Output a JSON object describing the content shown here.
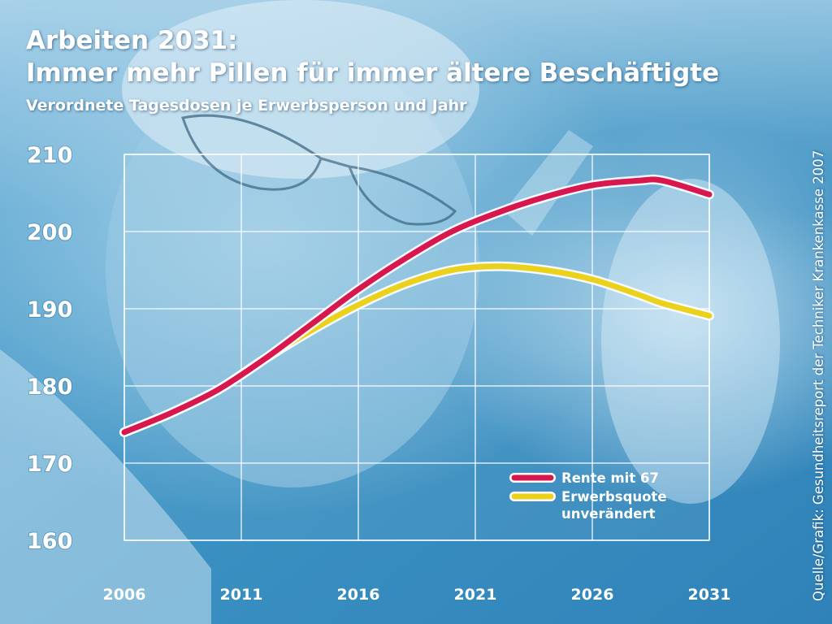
{
  "header": {
    "title_line1": "Arbeiten 2031:",
    "title_line2": "Immer mehr Pillen für immer ältere Beschäftigte",
    "subtitle": "Verordnete Tagesdosen je Erwerbsperson und Jahr"
  },
  "source": "Quelle/Grafik: Gesundheitsreport der Techniker Krankenkasse 2007",
  "chart_data": {
    "type": "line",
    "x": [
      2006,
      2008,
      2010,
      2012,
      2014,
      2016,
      2018,
      2020,
      2022,
      2024,
      2026,
      2028,
      2029,
      2031
    ],
    "xticks": [
      2006,
      2011,
      2016,
      2021,
      2026,
      2031
    ],
    "xtick_labels": [
      "2006",
      "2011",
      "2016",
      "2021",
      "2026",
      "2031"
    ],
    "ylim": [
      160,
      210
    ],
    "yticks": [
      160,
      170,
      180,
      190,
      200,
      210
    ],
    "ytick_labels": [
      "160",
      "170",
      "180",
      "190",
      "200",
      "210"
    ],
    "grid": true,
    "legend_position": "lower-right",
    "series": [
      {
        "name": "Rente mit 67",
        "color": "#d8174f",
        "values": [
          174,
          176.5,
          179.5,
          183.5,
          188,
          192.5,
          196.5,
          200,
          202.5,
          204.5,
          206,
          206.6,
          206.6,
          204.8
        ]
      },
      {
        "name": "Erwerbsquote unverändert",
        "name_lines": [
          "Erwerbsquote",
          "unverändert"
        ],
        "color": "#ead21c",
        "values": [
          174,
          176.5,
          179.5,
          183.5,
          187.2,
          190.5,
          193.2,
          195,
          195.5,
          195,
          193.8,
          191.8,
          190.7,
          189.1
        ]
      }
    ]
  }
}
